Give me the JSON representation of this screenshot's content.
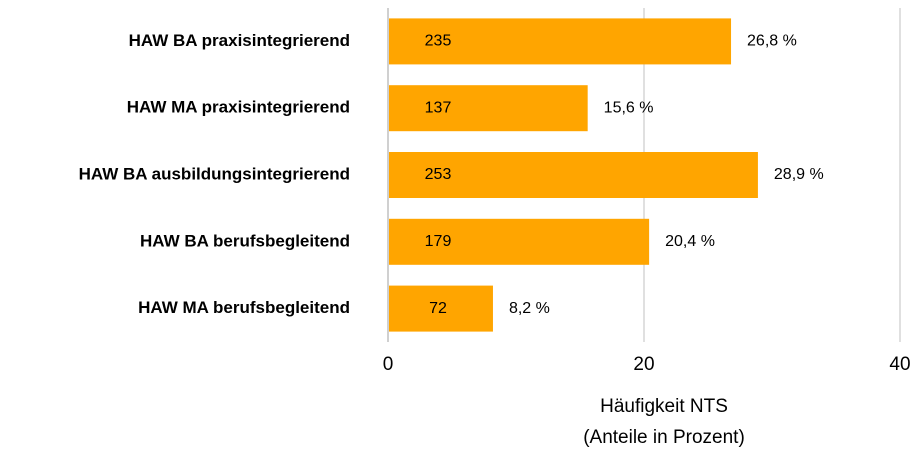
{
  "chart_data": {
    "type": "bar",
    "orientation": "horizontal",
    "categories": [
      "HAW BA praxisintegrierend",
      "HAW MA praxisintegrierend",
      "HAW BA ausbildungsintegrierend",
      "HAW BA berufsbegleitend",
      "HAW MA berufsbegleitend"
    ],
    "values": [
      26.8,
      15.6,
      28.9,
      20.4,
      8.2
    ],
    "value_labels": [
      "26,8 %",
      "15,6 %",
      "28,9 %",
      "20,4 %",
      "8,2 %"
    ],
    "counts": [
      235,
      137,
      253,
      179,
      72
    ],
    "color": "#ffa500",
    "xlim": [
      0,
      40
    ],
    "xticks": [
      0,
      20,
      40
    ],
    "grid": true,
    "xlabel": [
      "Häufigkeit NTS",
      "(Anteile in Prozent)"
    ]
  }
}
